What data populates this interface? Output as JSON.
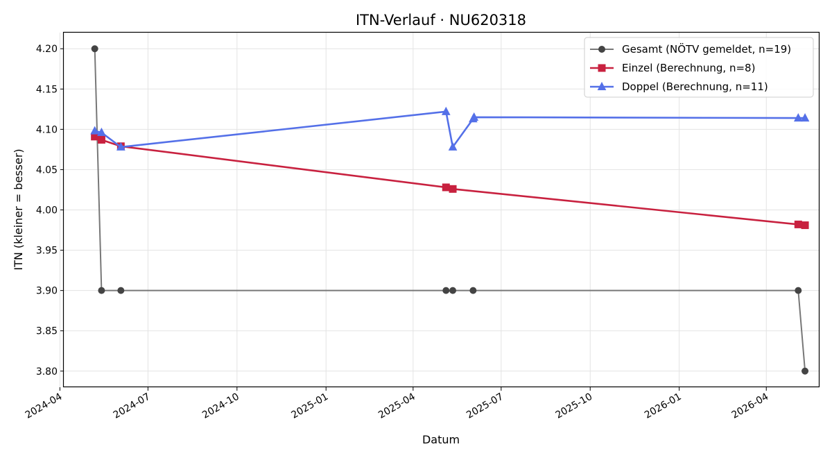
{
  "chart_data": {
    "type": "line",
    "title": "ITN-Verlauf · NU620318",
    "xlabel": "Datum",
    "ylabel": "ITN  (kleiner = besser)",
    "x_axis_type": "date",
    "xlim": [
      "2024-04-05",
      "2026-05-26"
    ],
    "ylim": [
      3.78,
      4.22
    ],
    "x_ticks": [
      "2024-04-01",
      "2024-07-01",
      "2024-10-01",
      "2025-01-01",
      "2025-04-01",
      "2025-07-01",
      "2025-10-01",
      "2026-01-01",
      "2026-04-01"
    ],
    "x_tick_labels": [
      "2024-04",
      "2024-07",
      "2024-10",
      "2025-01",
      "2025-04",
      "2025-07",
      "2025-10",
      "2026-01",
      "2026-04"
    ],
    "y_ticks": [
      3.8,
      3.85,
      3.9,
      3.95,
      4.0,
      4.05,
      4.1,
      4.15,
      4.2
    ],
    "y_tick_labels": [
      "3.80",
      "3.85",
      "3.90",
      "3.95",
      "4.00",
      "4.05",
      "4.10",
      "4.15",
      "4.20"
    ],
    "grid": true,
    "legend_position": "top-right",
    "series": [
      {
        "name": "Gesamt (NÖTV gemeldet, n=19)",
        "color": "#444444",
        "marker": "circle",
        "points": [
          {
            "x": "2024-05-07",
            "y": 4.2
          },
          {
            "x": "2024-05-14",
            "y": 3.9
          },
          {
            "x": "2024-06-03",
            "y": 3.9
          },
          {
            "x": "2025-05-05",
            "y": 3.9
          },
          {
            "x": "2025-05-12",
            "y": 3.9
          },
          {
            "x": "2025-06-02",
            "y": 3.9
          },
          {
            "x": "2026-05-04",
            "y": 3.9
          },
          {
            "x": "2026-05-11",
            "y": 3.8
          }
        ]
      },
      {
        "name": "Einzel (Berechnung, n=8)",
        "color": "#C8213F",
        "marker": "square",
        "points": [
          {
            "x": "2024-05-07",
            "y": 4.091
          },
          {
            "x": "2024-05-14",
            "y": 4.087
          },
          {
            "x": "2024-06-03",
            "y": 4.079
          },
          {
            "x": "2025-05-05",
            "y": 4.028
          },
          {
            "x": "2025-05-12",
            "y": 4.026
          },
          {
            "x": "2026-05-04",
            "y": 3.982
          },
          {
            "x": "2026-05-11",
            "y": 3.981
          }
        ]
      },
      {
        "name": "Doppel (Berechnung, n=11)",
        "color": "#5470E8",
        "marker": "triangle",
        "points": [
          {
            "x": "2024-05-07",
            "y": 4.098
          },
          {
            "x": "2024-05-14",
            "y": 4.096
          },
          {
            "x": "2024-06-03",
            "y": 4.078
          },
          {
            "x": "2025-05-05",
            "y": 4.122
          },
          {
            "x": "2025-05-12",
            "y": 4.078
          },
          {
            "x": "2025-06-02",
            "y": 4.113
          },
          {
            "x": "2025-06-03",
            "y": 4.115
          },
          {
            "x": "2026-05-04",
            "y": 4.114
          },
          {
            "x": "2026-05-11",
            "y": 4.114
          }
        ]
      }
    ]
  }
}
